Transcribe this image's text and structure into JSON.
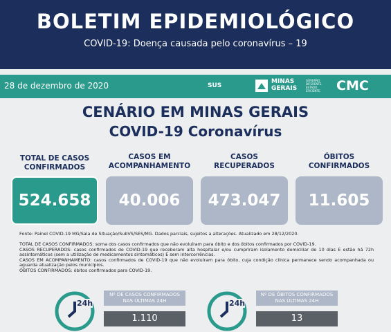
{
  "header": {
    "title": "BOLETIM EPIDEMIOLÓGICO",
    "subtitle": "COVID-19: Doença causada pelo coronavírus – 19"
  },
  "bar": {
    "date": "28 de dezembro de 2020",
    "logos": [
      "SUS",
      "MINAS GERAIS",
      "GOVERNO DIFERENTE. ESTADO EFICIENTE.",
      "CMC"
    ]
  },
  "section": {
    "title": "CENÁRIO EM MINAS GERAIS",
    "subtitle": "COVID-19 Coronavírus"
  },
  "cards": [
    {
      "label": "TOTAL DE CASOS CONFIRMADOS",
      "value": "524.658"
    },
    {
      "label": "CASOS EM ACOMPANHAMENTO",
      "value": "40.006"
    },
    {
      "label": "CASOS RECUPERADOS",
      "value": "473.047"
    },
    {
      "label": "ÓBITOS CONFIRMADOS",
      "value": "11.605"
    }
  ],
  "source": "Fonte: Painel COVID-19 MG/Sala de Situação/SubVS/SES/MG. Dados parciais, sujeitos a alterações. Atualizado em 28/12/2020.",
  "definitions": [
    "TOTAL DE CASOS CONFIRMADOS: soma dos casos confirmados que não evoluíram para óbito e dos óbitos confirmados por COVID-19.",
    "CASOS RECUPERADOS: casos confirmados de COVID-19 que receberam alta hospitalar e/ou cumpriram isolamento domiciliar de 10 dias E estão há 72h assintomáticos (sem a utilização de medicamentos sintomáticos) E sem intercorrências.",
    "CASOS EM ACOMPANHAMENTO: casos confirmados de COVID-19 que não evoluíram para óbito, cuja condição clínica permanece sendo acompanhada ou aguarda atualização pelos municípios.",
    "ÓBITOS CONFIRMADOS: óbitos confirmados para COVID-19."
  ],
  "daily": [
    {
      "icon": "24h",
      "label": "Nº DE CASOS CONFIRMADOS NAS ÚLTIMAS 24H",
      "value": "1.110"
    },
    {
      "icon": "24h",
      "label": "Nº DE ÓBITOS CONFIRMADOS NAS ÚLTIMAS 24H",
      "value": "13"
    }
  ]
}
